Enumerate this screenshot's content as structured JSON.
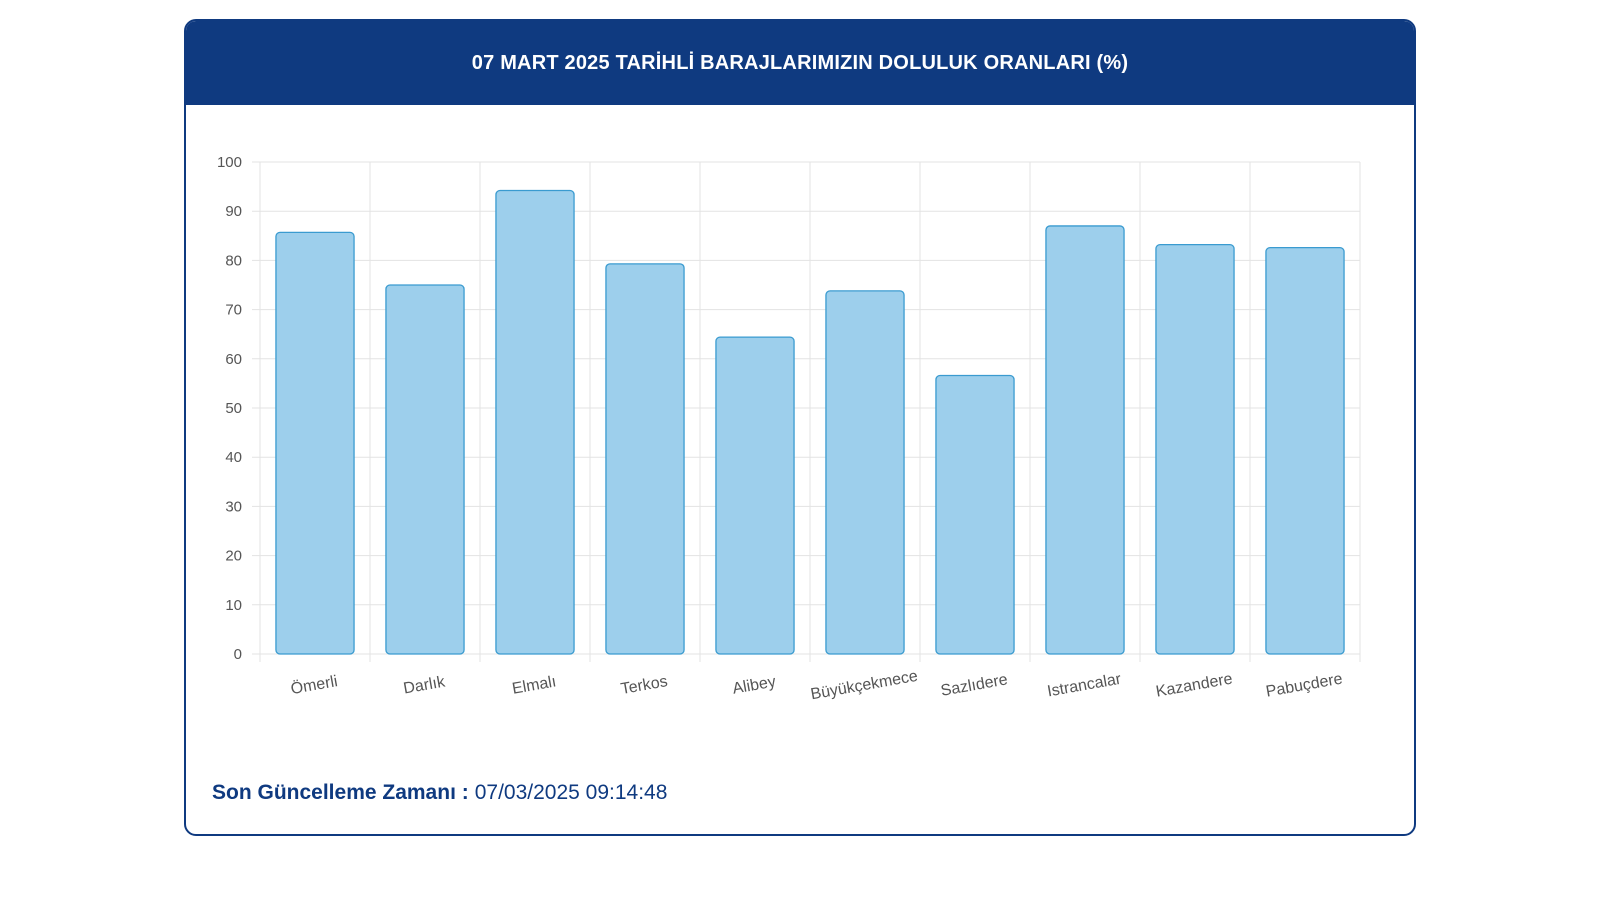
{
  "header": {
    "title": "07 MART 2025 TARİHLİ BARAJLARIMIZIN DOLULUK ORANLARI (%)"
  },
  "footer": {
    "label": "Son Güncelleme Zamanı :",
    "value": "07/03/2025 09:14:48"
  },
  "colors": {
    "header_bg": "#0f3a80",
    "bar_fill": "#9dcfec",
    "bar_stroke": "#3a9bd0",
    "grid": "#e3e3e3",
    "axis_text": "#555555"
  },
  "chart_data": {
    "type": "bar",
    "title": "07 MART 2025 TARİHLİ BARAJLARIMIZIN DOLULUK ORANLARI (%)",
    "categories": [
      "Ömerli",
      "Darlık",
      "Elmalı",
      "Terkos",
      "Alibey",
      "Büyükçekmece",
      "Sazlıdere",
      "Istrancalar",
      "Kazandere",
      "Pabuçdere"
    ],
    "values": [
      85.7,
      75.0,
      94.2,
      79.3,
      64.4,
      73.8,
      56.6,
      87.0,
      83.2,
      82.6
    ],
    "yticks": [
      0,
      10,
      20,
      30,
      40,
      50,
      60,
      70,
      80,
      90,
      100
    ],
    "ylim": [
      0,
      100
    ],
    "xlabel": "",
    "ylabel": "",
    "grid": true,
    "legend": "none"
  }
}
